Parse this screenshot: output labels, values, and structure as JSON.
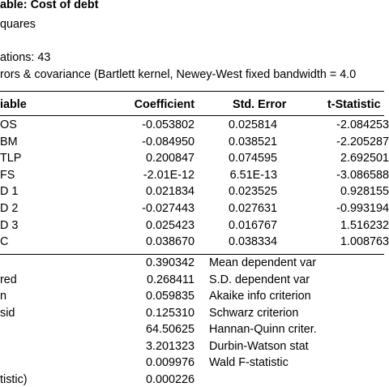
{
  "header": {
    "title": "able: Cost of debt",
    "method": "quares",
    "observations": "ations: 43",
    "errors_note": "rors & covariance (Bartlett kernel, Newey-West fixed bandwidth = 4.0"
  },
  "columns": {
    "variable": "iable",
    "coefficient": "Coefficient",
    "std_error": "Std. Error",
    "t_statistic": "t-Statistic"
  },
  "coef_rows": [
    {
      "name": "OS",
      "coef": "-0.053802",
      "se": "0.025814",
      "t": "-2.084253"
    },
    {
      "name": "BM",
      "coef": "-0.084950",
      "se": "0.038521",
      "t": "-2.205287"
    },
    {
      "name": "TLP",
      "coef": "0.200847",
      "se": "0.074595",
      "t": "2.692501"
    },
    {
      "name": "FS",
      "coef": "-2.01E-12",
      "se": "6.51E-13",
      "t": "-3.086588"
    },
    {
      "name": "D 1",
      "coef": "0.021834",
      "se": "0.023525",
      "t": "0.928155"
    },
    {
      "name": "D 2",
      "coef": "-0.027443",
      "se": "0.027631",
      "t": "-0.993194"
    },
    {
      "name": "D 3",
      "coef": "0.025423",
      "se": "0.016767",
      "t": "1.516232"
    },
    {
      "name": "C",
      "coef": "0.038670",
      "se": "0.038334",
      "t": "1.008763"
    }
  ],
  "stat_rows": [
    {
      "label": "",
      "value": "0.390342",
      "label2": "Mean dependent var"
    },
    {
      "label": "red",
      "value": "0.268411",
      "label2": "S.D. dependent var"
    },
    {
      "label": "n",
      "value": "0.059835",
      "label2": "Akaike info criterion"
    },
    {
      "label": "sid",
      "value": "0.125310",
      "label2": "Schwarz criterion"
    },
    {
      "label": "",
      "value": "64.50625",
      "label2": "Hannan-Quinn criter."
    },
    {
      "label": "",
      "value": "3.201323",
      "label2": "Durbin-Watson stat"
    },
    {
      "label": "",
      "value": "0.009976",
      "label2": "Wald F-statistic"
    },
    {
      "label": "tistic)",
      "value": "0.000226",
      "label2": ""
    }
  ]
}
